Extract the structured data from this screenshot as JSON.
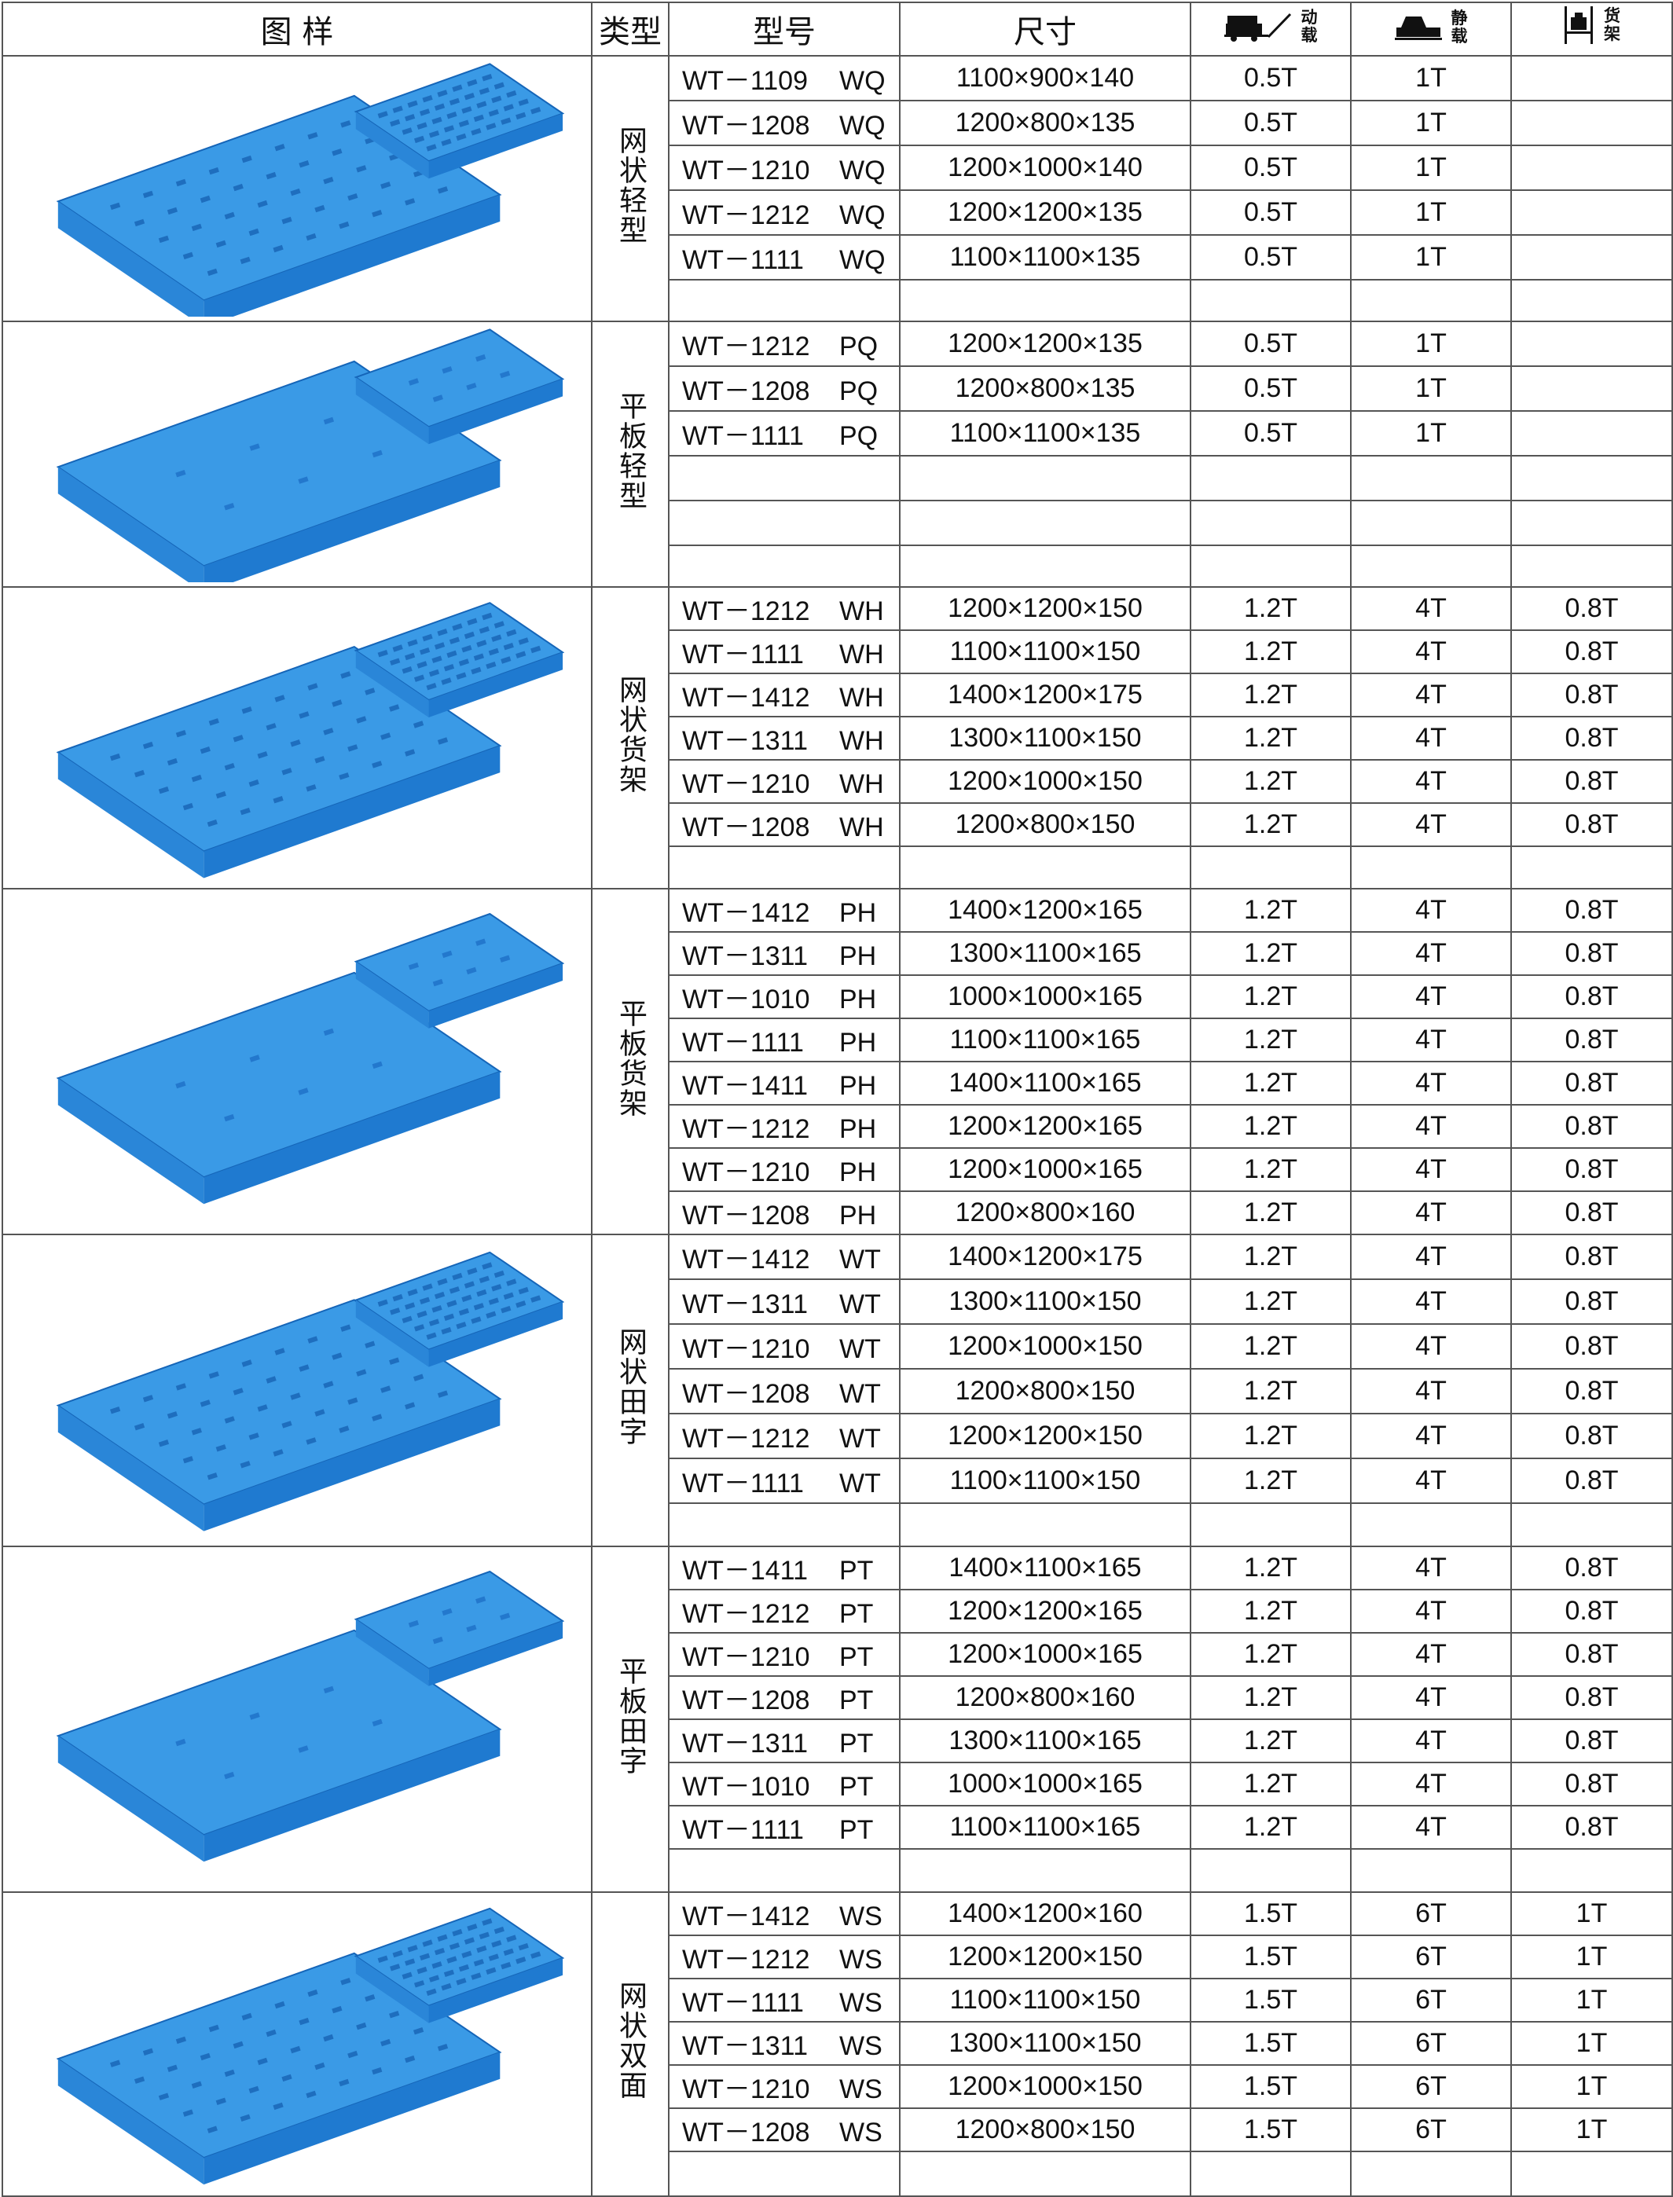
{
  "header": {
    "image": "图 样",
    "type": "类型",
    "model": "型号",
    "size": "尺寸",
    "dynamic": {
      "icon": "forklift-dynamic-load-icon",
      "label1": "动",
      "label2": "载"
    },
    "static": {
      "icon": "static-stack-load-icon",
      "label1": "静",
      "label2": "载"
    },
    "rack": {
      "icon": "rack-load-icon",
      "label1": "货",
      "label2": "架"
    }
  },
  "colors": {
    "pallet_blue": "#2a8fe0",
    "pallet_dark": "#1565b8",
    "border": "#555555"
  },
  "groups": [
    {
      "type": "网状轻型",
      "image_icon": "grid-light-pallet-image",
      "rows": [
        {
          "m": "WT－1109",
          "s": "WQ",
          "size": "1100×900×140",
          "d": "0.5T",
          "st": "1T",
          "r": ""
        },
        {
          "m": "WT－1208",
          "s": "WQ",
          "size": "1200×800×135",
          "d": "0.5T",
          "st": "1T",
          "r": ""
        },
        {
          "m": "WT－1210",
          "s": "WQ",
          "size": "1200×1000×140",
          "d": "0.5T",
          "st": "1T",
          "r": ""
        },
        {
          "m": "WT－1212",
          "s": "WQ",
          "size": "1200×1200×135",
          "d": "0.5T",
          "st": "1T",
          "r": ""
        },
        {
          "m": "WT－1111",
          "s": "WQ",
          "size": "1100×1100×135",
          "d": "0.5T",
          "st": "1T",
          "r": ""
        },
        {
          "m": "",
          "s": "",
          "size": "",
          "d": "",
          "st": "",
          "r": ""
        }
      ]
    },
    {
      "type": "平板轻型",
      "image_icon": "flat-light-pallet-image",
      "rows": [
        {
          "m": "WT－1212",
          "s": "PQ",
          "size": "1200×1200×135",
          "d": "0.5T",
          "st": "1T",
          "r": ""
        },
        {
          "m": "WT－1208",
          "s": "PQ",
          "size": "1200×800×135",
          "d": "0.5T",
          "st": "1T",
          "r": ""
        },
        {
          "m": "WT－1111",
          "s": "PQ",
          "size": "1100×1100×135",
          "d": "0.5T",
          "st": "1T",
          "r": ""
        },
        {
          "m": "",
          "s": "",
          "size": "",
          "d": "",
          "st": "",
          "r": ""
        },
        {
          "m": "",
          "s": "",
          "size": "",
          "d": "",
          "st": "",
          "r": ""
        },
        {
          "m": "",
          "s": "",
          "size": "",
          "d": "",
          "st": "",
          "r": ""
        }
      ]
    },
    {
      "type": "网状货架",
      "image_icon": "grid-rack-pallet-image",
      "rows": [
        {
          "m": "WT－1212",
          "s": "WH",
          "size": "1200×1200×150",
          "d": "1.2T",
          "st": "4T",
          "r": "0.8T"
        },
        {
          "m": "WT－1111",
          "s": "WH",
          "size": "1100×1100×150",
          "d": "1.2T",
          "st": "4T",
          "r": "0.8T"
        },
        {
          "m": "WT－1412",
          "s": "WH",
          "size": "1400×1200×175",
          "d": "1.2T",
          "st": "4T",
          "r": "0.8T"
        },
        {
          "m": "WT－1311",
          "s": "WH",
          "size": "1300×1100×150",
          "d": "1.2T",
          "st": "4T",
          "r": "0.8T"
        },
        {
          "m": "WT－1210",
          "s": "WH",
          "size": "1200×1000×150",
          "d": "1.2T",
          "st": "4T",
          "r": "0.8T"
        },
        {
          "m": "WT－1208",
          "s": "WH",
          "size": "1200×800×150",
          "d": "1.2T",
          "st": "4T",
          "r": "0.8T"
        },
        {
          "m": "",
          "s": "",
          "size": "",
          "d": "",
          "st": "",
          "r": ""
        }
      ]
    },
    {
      "type": "平板货架",
      "image_icon": "flat-rack-pallet-image",
      "rows": [
        {
          "m": "WT－1412",
          "s": "PH",
          "size": "1400×1200×165",
          "d": "1.2T",
          "st": "4T",
          "r": "0.8T"
        },
        {
          "m": "WT－1311",
          "s": "PH",
          "size": "1300×1100×165",
          "d": "1.2T",
          "st": "4T",
          "r": "0.8T"
        },
        {
          "m": "WT－1010",
          "s": "PH",
          "size": "1000×1000×165",
          "d": "1.2T",
          "st": "4T",
          "r": "0.8T"
        },
        {
          "m": "WT－1111",
          "s": "PH",
          "size": "1100×1100×165",
          "d": "1.2T",
          "st": "4T",
          "r": "0.8T"
        },
        {
          "m": "WT－1411",
          "s": "PH",
          "size": "1400×1100×165",
          "d": "1.2T",
          "st": "4T",
          "r": "0.8T"
        },
        {
          "m": "WT－1212",
          "s": "PH",
          "size": "1200×1200×165",
          "d": "1.2T",
          "st": "4T",
          "r": "0.8T"
        },
        {
          "m": "WT－1210",
          "s": "PH",
          "size": "1200×1000×165",
          "d": "1.2T",
          "st": "4T",
          "r": "0.8T"
        },
        {
          "m": "WT－1208",
          "s": "PH",
          "size": "1200×800×160",
          "d": "1.2T",
          "st": "4T",
          "r": "0.8T"
        }
      ]
    },
    {
      "type": "网状田字",
      "image_icon": "grid-nine-leg-pallet-image",
      "rows": [
        {
          "m": "WT－1412",
          "s": "WT",
          "size": "1400×1200×175",
          "d": "1.2T",
          "st": "4T",
          "r": "0.8T"
        },
        {
          "m": "WT－1311",
          "s": "WT",
          "size": "1300×1100×150",
          "d": "1.2T",
          "st": "4T",
          "r": "0.8T"
        },
        {
          "m": "WT－1210",
          "s": "WT",
          "size": "1200×1000×150",
          "d": "1.2T",
          "st": "4T",
          "r": "0.8T"
        },
        {
          "m": "WT－1208",
          "s": "WT",
          "size": "1200×800×150",
          "d": "1.2T",
          "st": "4T",
          "r": "0.8T"
        },
        {
          "m": "WT－1212",
          "s": "WT",
          "size": "1200×1200×150",
          "d": "1.2T",
          "st": "4T",
          "r": "0.8T"
        },
        {
          "m": "WT－1111",
          "s": "WT",
          "size": "1100×1100×150",
          "d": "1.2T",
          "st": "4T",
          "r": "0.8T"
        },
        {
          "m": "",
          "s": "",
          "size": "",
          "d": "",
          "st": "",
          "r": ""
        }
      ]
    },
    {
      "type": "平板田字",
      "image_icon": "flat-nine-leg-pallet-image",
      "rows": [
        {
          "m": "WT－1411",
          "s": "PT",
          "size": "1400×1100×165",
          "d": "1.2T",
          "st": "4T",
          "r": "0.8T"
        },
        {
          "m": "WT－1212",
          "s": "PT",
          "size": "1200×1200×165",
          "d": "1.2T",
          "st": "4T",
          "r": "0.8T"
        },
        {
          "m": "WT－1210",
          "s": "PT",
          "size": "1200×1000×165",
          "d": "1.2T",
          "st": "4T",
          "r": "0.8T"
        },
        {
          "m": "WT－1208",
          "s": "PT",
          "size": "1200×800×160",
          "d": "1.2T",
          "st": "4T",
          "r": "0.8T"
        },
        {
          "m": "WT－1311",
          "s": "PT",
          "size": "1300×1100×165",
          "d": "1.2T",
          "st": "4T",
          "r": "0.8T"
        },
        {
          "m": "WT－1010",
          "s": "PT",
          "size": "1000×1000×165",
          "d": "1.2T",
          "st": "4T",
          "r": "0.8T"
        },
        {
          "m": "WT－1111",
          "s": "PT",
          "size": "1100×1100×165",
          "d": "1.2T",
          "st": "4T",
          "r": "0.8T"
        },
        {
          "m": "",
          "s": "",
          "size": "",
          "d": "",
          "st": "",
          "r": ""
        }
      ]
    },
    {
      "type": "网状双面",
      "image_icon": "grid-double-face-pallet-image",
      "rows": [
        {
          "m": "WT－1412",
          "s": "WS",
          "size": "1400×1200×160",
          "d": "1.5T",
          "st": "6T",
          "r": "1T"
        },
        {
          "m": "WT－1212",
          "s": "WS",
          "size": "1200×1200×150",
          "d": "1.5T",
          "st": "6T",
          "r": "1T"
        },
        {
          "m": "WT－1111",
          "s": "WS",
          "size": "1100×1100×150",
          "d": "1.5T",
          "st": "6T",
          "r": "1T"
        },
        {
          "m": "WT－1311",
          "s": "WS",
          "size": "1300×1100×150",
          "d": "1.5T",
          "st": "6T",
          "r": "1T"
        },
        {
          "m": "WT－1210",
          "s": "WS",
          "size": "1200×1000×150",
          "d": "1.5T",
          "st": "6T",
          "r": "1T"
        },
        {
          "m": "WT－1208",
          "s": "WS",
          "size": "1200×800×150",
          "d": "1.5T",
          "st": "6T",
          "r": "1T"
        },
        {
          "m": "",
          "s": "",
          "size": "",
          "d": "",
          "st": "",
          "r": ""
        }
      ]
    }
  ]
}
